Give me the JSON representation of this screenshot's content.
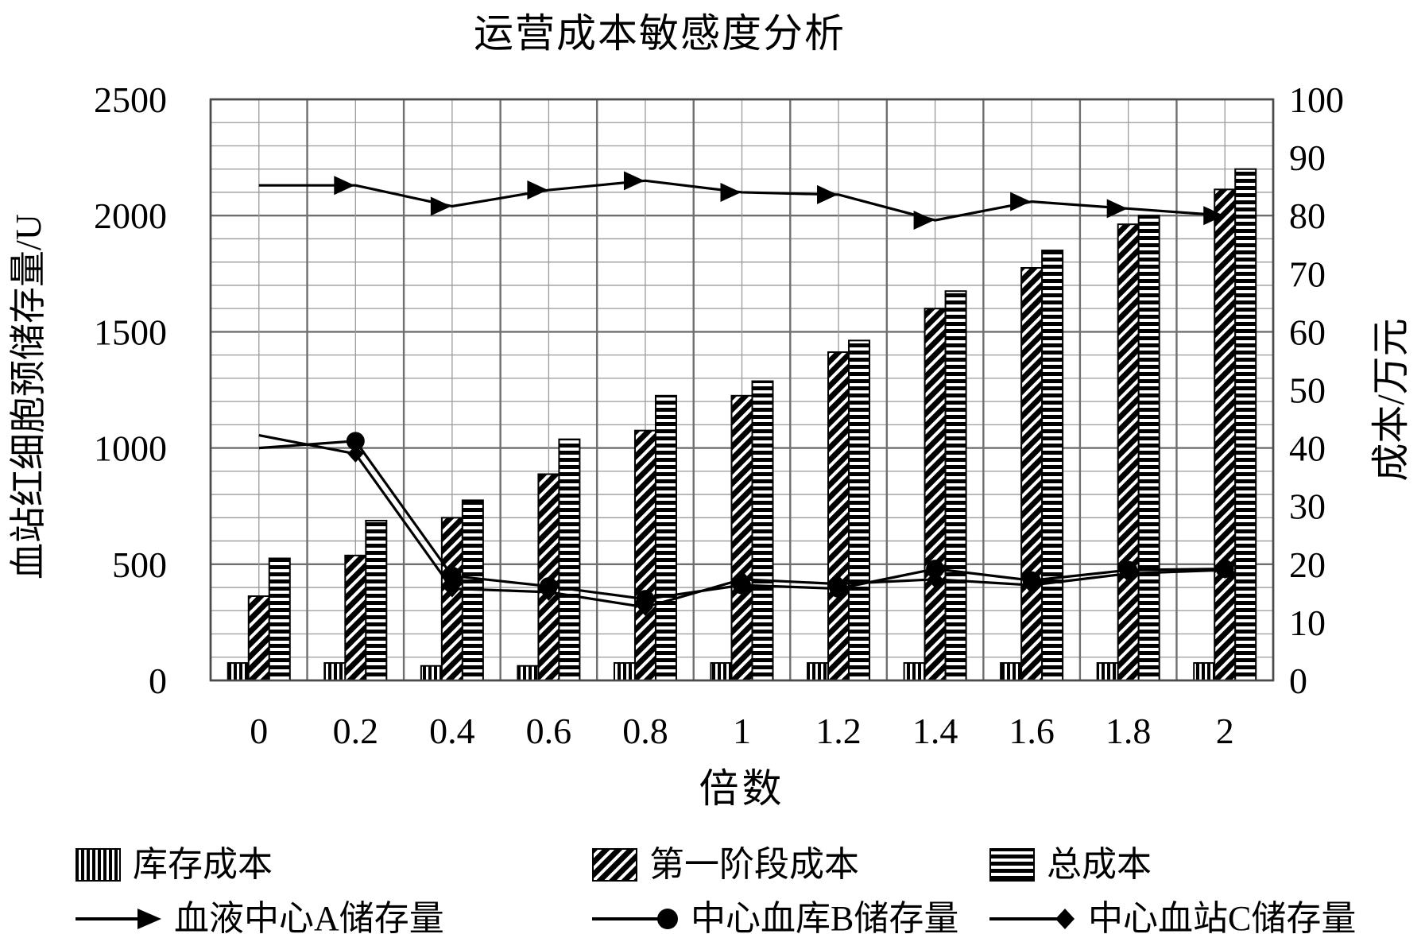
{
  "title": "运营成本敏感度分析",
  "x_axis": {
    "title": "倍数",
    "labels": [
      "0",
      "0.2",
      "0.4",
      "0.6",
      "0.8",
      "1",
      "1.2",
      "1.4",
      "1.6",
      "1.8",
      "2"
    ]
  },
  "left_axis": {
    "title": "血站红细胞预储存量/U",
    "min": 0,
    "max": 2500,
    "tick_step": 500,
    "ticks": [
      "0",
      "500",
      "1000",
      "1500",
      "2000",
      "2500"
    ]
  },
  "right_axis": {
    "title": "成本/万元",
    "min": 0,
    "max": 100,
    "tick_step": 10,
    "ticks": [
      "0",
      "10",
      "20",
      "30",
      "40",
      "50",
      "60",
      "70",
      "80",
      "90",
      "100"
    ]
  },
  "chart_data": {
    "type": "combo-bar-line",
    "categories": [
      0,
      0.2,
      0.4,
      0.6,
      0.8,
      1,
      1.2,
      1.4,
      1.6,
      1.8,
      2
    ],
    "bar_series": [
      {
        "name": "库存成本",
        "axis": "right",
        "pattern": "vertical-stripes",
        "values": [
          3,
          3,
          2.5,
          2.5,
          3,
          3,
          3,
          3,
          3,
          3,
          3
        ]
      },
      {
        "name": "第一阶段成本",
        "axis": "right",
        "pattern": "diagonal-stripes",
        "values": [
          14.5,
          21.5,
          28,
          35.5,
          43,
          49,
          56.5,
          64,
          71,
          78.5,
          84.5
        ]
      },
      {
        "name": "总成本",
        "axis": "right",
        "pattern": "horizontal-stripes",
        "values": [
          21,
          27.5,
          31,
          41.5,
          49,
          51.5,
          58.5,
          67,
          74,
          80,
          88
        ]
      }
    ],
    "line_series": [
      {
        "name": "血液中心A储存量",
        "axis": "left",
        "marker": "arrow",
        "values": [
          2130,
          2130,
          2040,
          2110,
          2150,
          2100,
          2090,
          1980,
          2060,
          2030,
          2000
        ]
      },
      {
        "name": "中心血库B储存量",
        "axis": "left",
        "marker": "circle",
        "values": [
          1000,
          1030,
          450,
          405,
          350,
          410,
          395,
          480,
          430,
          475,
          480
        ]
      },
      {
        "name": "中心血站C储存量",
        "axis": "left",
        "marker": "diamond",
        "values": [
          1055,
          975,
          395,
          380,
          315,
          435,
          415,
          435,
          410,
          460,
          475
        ]
      }
    ],
    "grid": {
      "horizontal_minor_step_left_units": 100,
      "horizontal_major_step_left_units": 500,
      "vertical_lines": "category boundaries (thick) and category centers (thin)"
    },
    "legend_position": "bottom",
    "colors": {
      "ink": "#000000",
      "grid_minor": "#9a9a9a",
      "grid_major": "#6f6f6f",
      "background": "#ffffff"
    }
  },
  "legend": {
    "row1": [
      {
        "swatch": "vertical-stripes-swatch",
        "label": "库存成本"
      },
      {
        "swatch": "diagonal-stripes-swatch",
        "label": "第一阶段成本"
      },
      {
        "swatch": "horizontal-stripes-swatch",
        "label": "总成本"
      }
    ],
    "row2": [
      {
        "swatch": "arrow-line-swatch",
        "label": "血液中心A储存量"
      },
      {
        "swatch": "circle-line-swatch",
        "label": "中心血库B储存量"
      },
      {
        "swatch": "diamond-line-swatch",
        "label": "中心血站C储存量"
      }
    ]
  }
}
